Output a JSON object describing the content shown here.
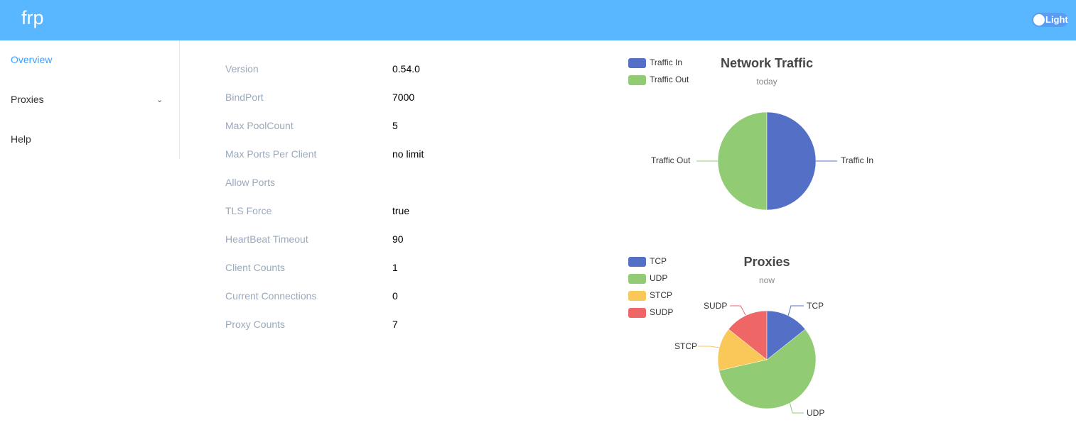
{
  "header": {
    "logo": "frp",
    "theme_toggle": "Light"
  },
  "sidebar": {
    "items": [
      {
        "label": "Overview"
      },
      {
        "label": "Proxies"
      },
      {
        "label": "Help"
      }
    ]
  },
  "overview": [
    {
      "label": "Version",
      "value": "0.54.0"
    },
    {
      "label": "BindPort",
      "value": "7000"
    },
    {
      "label": "Max PoolCount",
      "value": "5"
    },
    {
      "label": "Max Ports Per Client",
      "value": "no limit"
    },
    {
      "label": "Allow Ports",
      "value": ""
    },
    {
      "label": "TLS Force",
      "value": "true"
    },
    {
      "label": "HeartBeat Timeout",
      "value": "90"
    },
    {
      "label": "Client Counts",
      "value": "1"
    },
    {
      "label": "Current Connections",
      "value": "0"
    },
    {
      "label": "Proxy Counts",
      "value": "7"
    }
  ],
  "chart_data": [
    {
      "type": "pie",
      "title": "Network Traffic",
      "subtitle": "today",
      "legend": "top-left",
      "categories": [
        "Traffic In",
        "Traffic Out"
      ],
      "values": [
        1,
        1
      ],
      "colors": [
        "#5470c6",
        "#91cc75"
      ]
    },
    {
      "type": "pie",
      "title": "Proxies",
      "subtitle": "now",
      "legend": "top-left",
      "categories": [
        "TCP",
        "UDP",
        "STCP",
        "SUDP"
      ],
      "values": [
        1,
        4,
        1,
        1
      ],
      "colors": [
        "#5470c6",
        "#91cc75",
        "#fac858",
        "#ee6666"
      ]
    }
  ]
}
